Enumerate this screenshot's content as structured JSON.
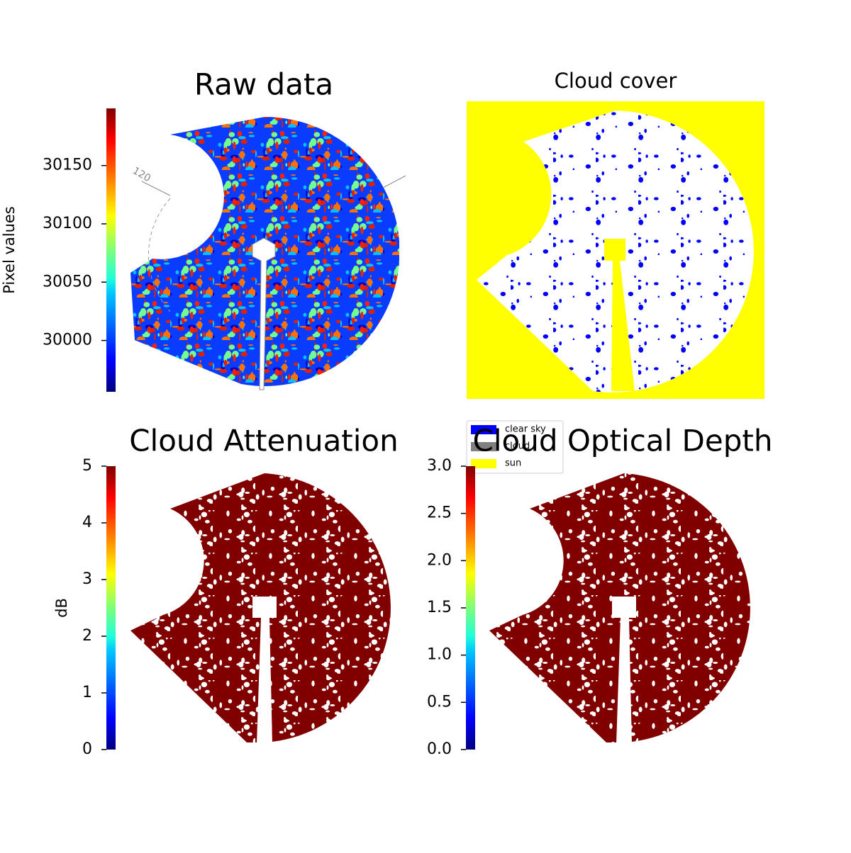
{
  "chart_data": [
    {
      "type": "image",
      "title": "Raw data",
      "colorbar_label": "Pixel values",
      "annotations": [
        "120"
      ],
      "ylim": [
        29956,
        30199
      ],
      "yticks": [
        30000,
        30050,
        30100,
        30150
      ],
      "colormap": "jet"
    },
    {
      "type": "image",
      "title": "Cloud cover",
      "legend": [
        {
          "name": "clear sky",
          "color": "#0000ff"
        },
        {
          "name": "cloud",
          "color": "#808080"
        },
        {
          "name": "sun",
          "color": "#ffff00"
        }
      ]
    },
    {
      "type": "image",
      "title": "Cloud Attenuation",
      "colorbar_label": "dB",
      "ylim": [
        0,
        5
      ],
      "yticks": [
        0,
        1,
        2,
        3,
        4,
        5
      ],
      "colormap": "jet"
    },
    {
      "type": "image",
      "title": "Cloud Optical Depth",
      "ylim": [
        0,
        3
      ],
      "yticks": [
        {
          "value": 0,
          "label": "0.0"
        },
        {
          "value": 0.5,
          "label": "0.5"
        },
        {
          "value": 1,
          "label": "1.0"
        },
        {
          "value": 1.5,
          "label": "1.5"
        },
        {
          "value": 2,
          "label": "2.0"
        },
        {
          "value": 2.5,
          "label": "2.5"
        },
        {
          "value": 3,
          "label": "3.0"
        }
      ],
      "colormap": "jet"
    }
  ]
}
